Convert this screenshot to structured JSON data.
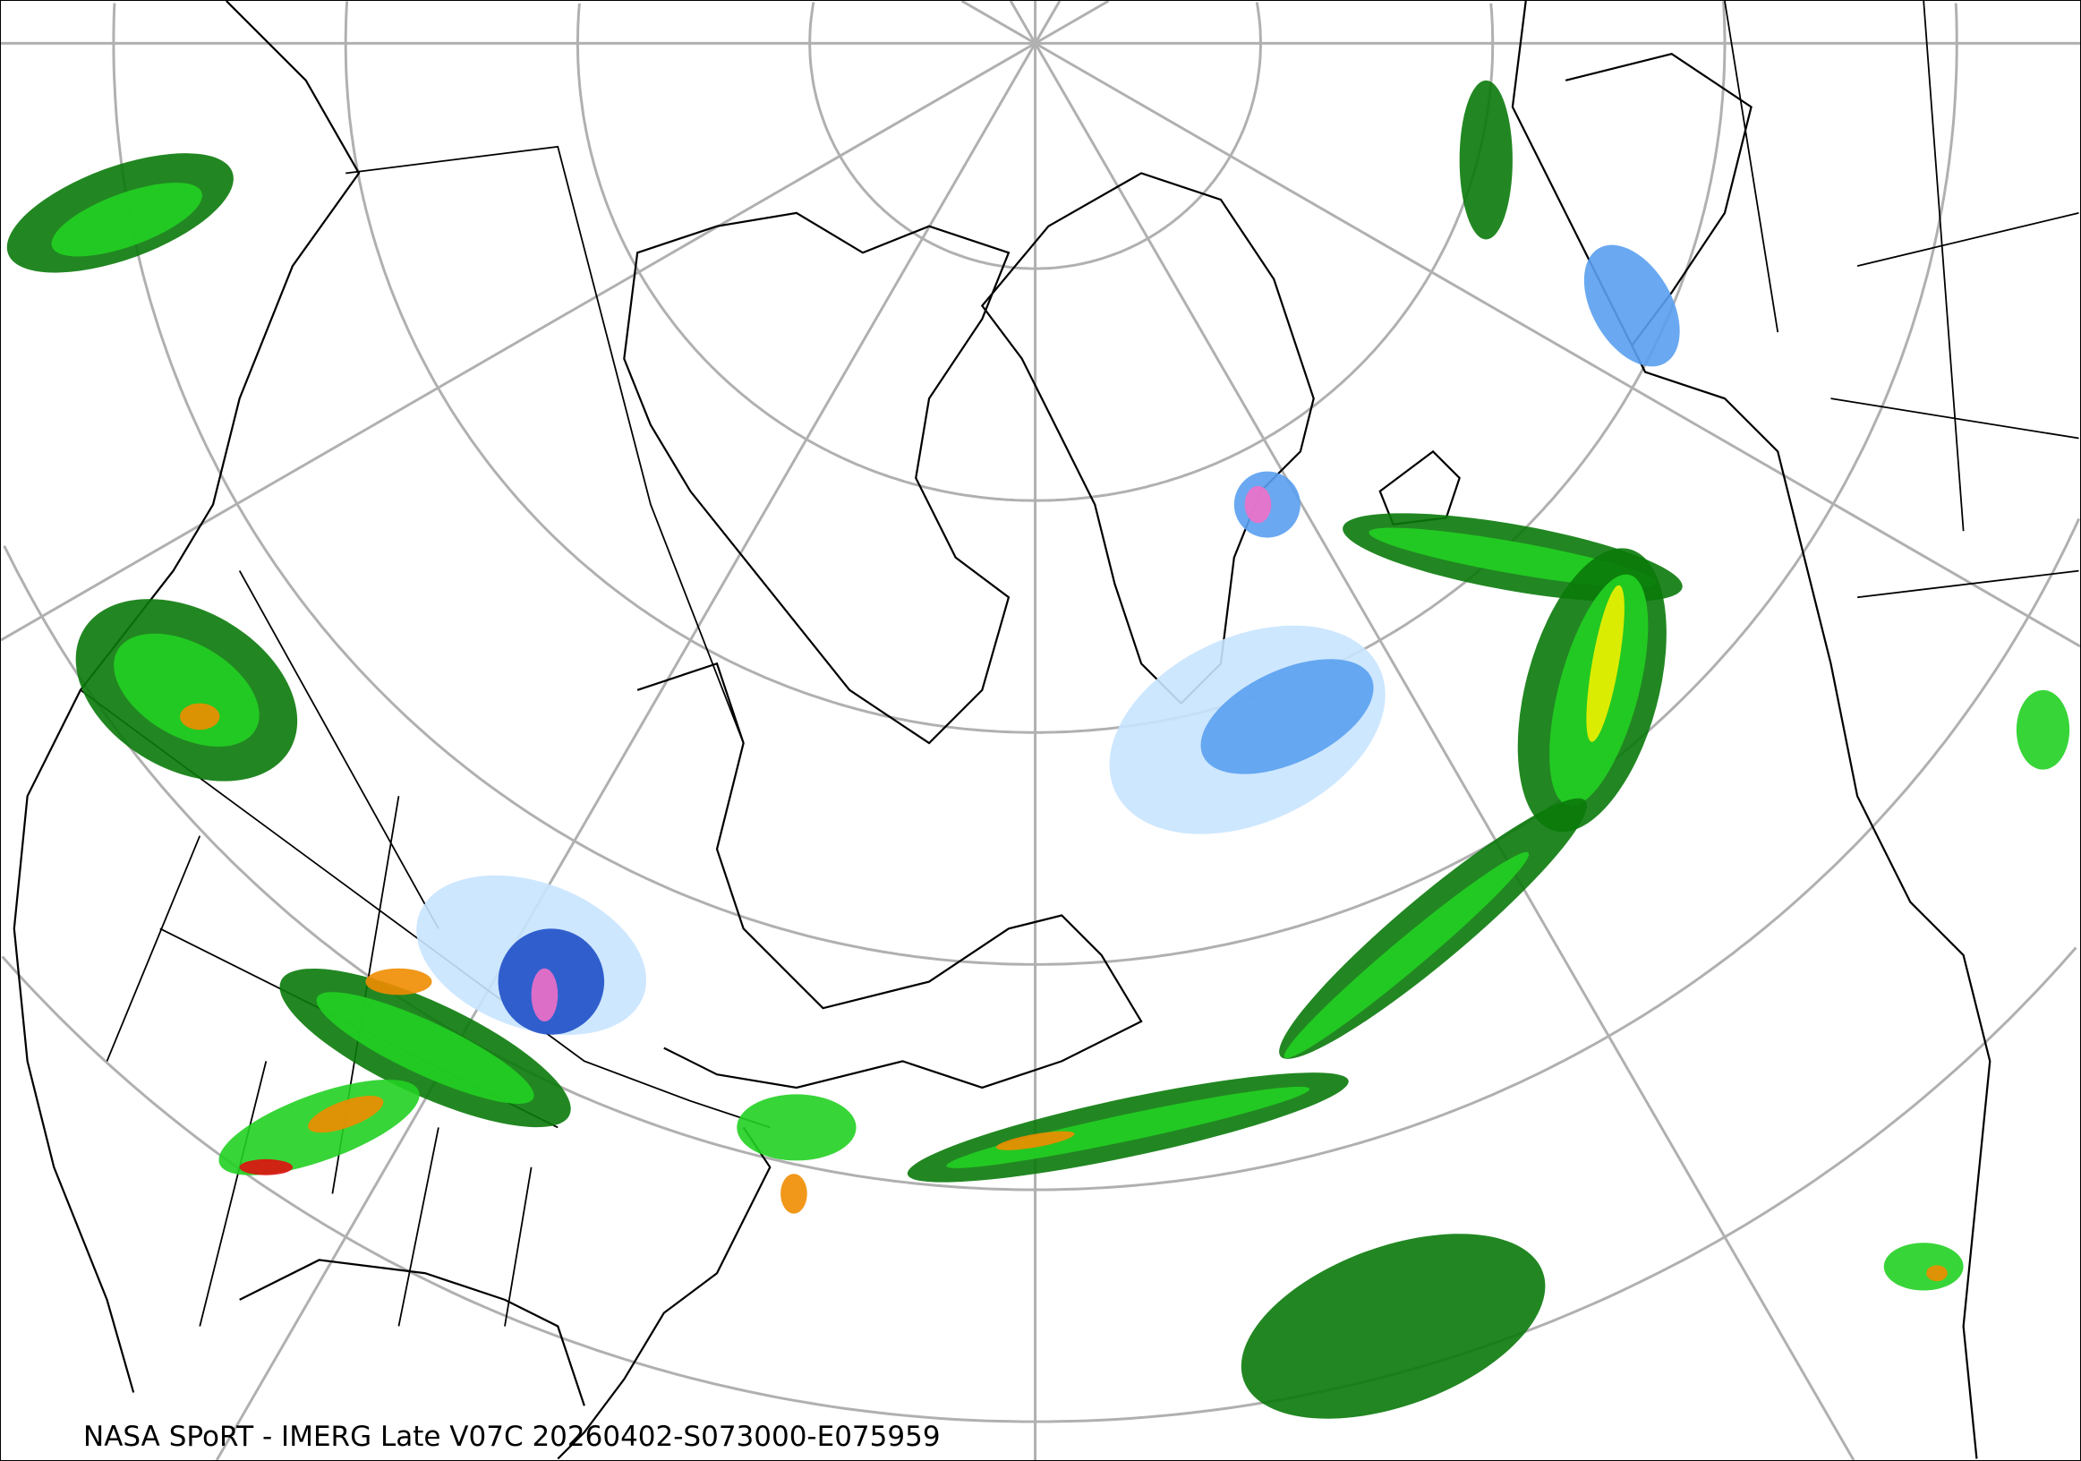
{
  "map": {
    "caption": "NASA SPoRT - IMERG Late V07C 20260402-S073000-E075959",
    "projection": "north-polar stereographic",
    "region": "North America, North Atlantic, Greenland, Europe",
    "layers": [
      "graticule",
      "coastlines",
      "political boundaries",
      "precipitation rate"
    ],
    "colors": {
      "graticule": "#b0b0b0",
      "boundaries": "#000000",
      "snow_light": "#c8e4ff",
      "snow_moderate": "#5aa0f0",
      "snow_heavy": "#1f50c8",
      "snow_extreme": "#f070c8",
      "rain_light": "#0a7a0a",
      "rain_moderate": "#22d022",
      "rain_heavy": "#f0f000",
      "rain_very_heavy": "#f08c00",
      "rain_extreme": "#e01010"
    }
  }
}
